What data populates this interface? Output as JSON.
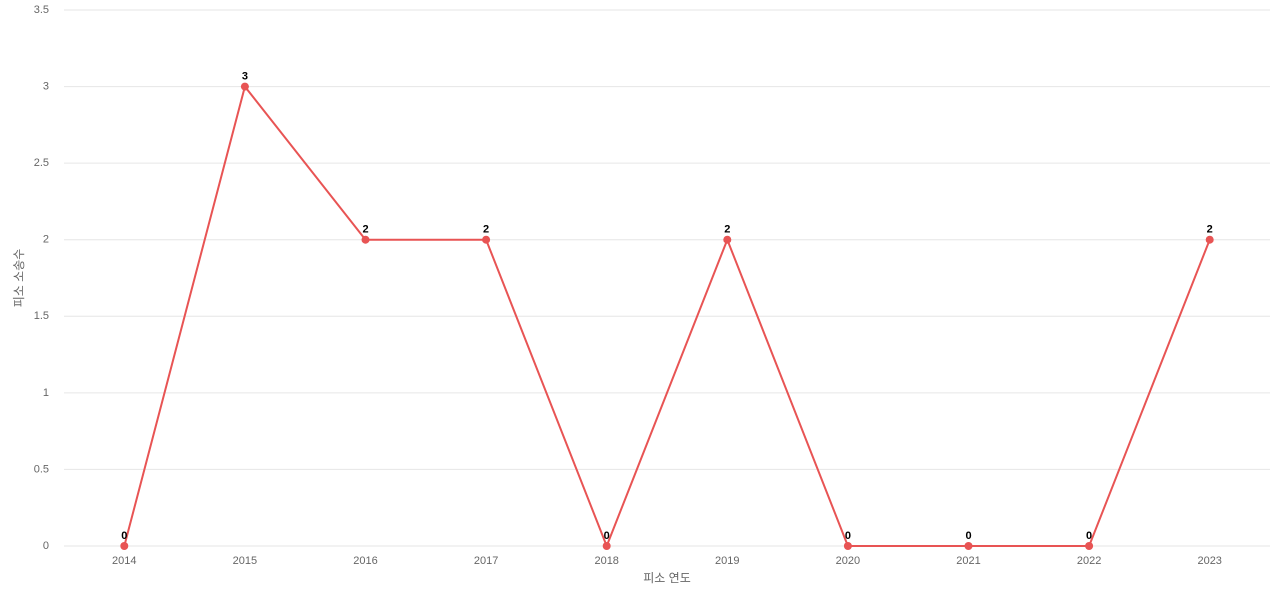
{
  "chart_data": {
    "type": "line",
    "x_label": "피소 연도",
    "y_label": "피소 소송수",
    "categories": [
      "2014",
      "2015",
      "2016",
      "2017",
      "2018",
      "2019",
      "2020",
      "2021",
      "2022",
      "2023"
    ],
    "series": [
      {
        "color": "#e85454",
        "values": [
          0,
          3,
          2,
          2,
          0,
          2,
          0,
          0,
          0,
          2
        ]
      }
    ],
    "ylim": [
      0,
      3.5
    ],
    "yticks": [
      0,
      0.5,
      1,
      1.5,
      2,
      2.5,
      3,
      3.5
    ],
    "grid": true,
    "data_labels": true
  }
}
